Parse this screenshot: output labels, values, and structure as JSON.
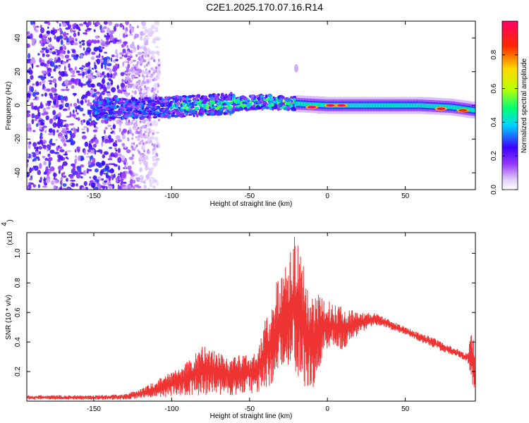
{
  "title": "C2E1.2025.170.07.16.R14",
  "chart_data": [
    {
      "type": "heatmap",
      "xlabel": "Height of straight line (km)",
      "ylabel": "Frequency (Hz)",
      "xlim": [
        -193,
        95
      ],
      "ylim": [
        -50,
        50
      ],
      "x_ticks": [
        -150,
        -100,
        -50,
        0,
        50
      ],
      "y_ticks": [
        -40,
        -20,
        0,
        20,
        40
      ],
      "x_tick_labels": [
        "-150",
        "-100",
        "-50",
        "0",
        "50"
      ],
      "y_tick_labels": [
        "-40",
        "-20",
        "0",
        "20",
        "40"
      ],
      "colorbar": {
        "label": "Normalized spectral amplitude",
        "range": [
          0,
          1
        ],
        "ticks": [
          0.0,
          0.2,
          0.4,
          0.6,
          0.8
        ],
        "tick_labels": [
          "0.0",
          "0.2",
          "0.4",
          "0.6",
          "0.8"
        ],
        "colors": [
          "#ffffff",
          "#9b30ff",
          "#3a00ff",
          "#00e5ff",
          "#00ff66",
          "#c8ff00",
          "#ffd800",
          "#ff3000",
          "#ff0060"
        ]
      },
      "ridge": {
        "x": [
          -140,
          -120,
          -100,
          -80,
          -60,
          -40,
          -20,
          0,
          20,
          40,
          60,
          80,
          95
        ],
        "y": [
          -2,
          -2,
          -1,
          0,
          1,
          2,
          1,
          0,
          0,
          0,
          0,
          -1,
          -3
        ]
      },
      "hot_spots": [
        {
          "x": -10,
          "y": -1,
          "v": 1.0
        },
        {
          "x": 2,
          "y": 0,
          "v": 0.95
        },
        {
          "x": 9,
          "y": 0,
          "v": 0.95
        },
        {
          "x": 73,
          "y": -2,
          "v": 1.0
        },
        {
          "x": 87,
          "y": -3,
          "v": 0.9
        }
      ]
    },
    {
      "type": "line",
      "xlabel": "Height of straight line (km)",
      "ylabel": "SNR (10 * v/v)",
      "y_multiplier_label": "(x10",
      "y_multiplier_exp": "4",
      "xlim": [
        -193,
        95
      ],
      "ylim": [
        0,
        1.14
      ],
      "x_ticks": [
        -150,
        -100,
        -50,
        0,
        50
      ],
      "y_ticks": [
        0.2,
        0.4,
        0.6,
        0.8,
        1.0
      ],
      "x_tick_labels": [
        "-150",
        "-100",
        "-50",
        "0",
        "50"
      ],
      "y_tick_labels": [
        "0.2",
        "0.4",
        "0.6",
        "0.8",
        "1.0"
      ],
      "color": "#ee3333",
      "envelope": {
        "x": [
          -193,
          -150,
          -130,
          -120,
          -100,
          -90,
          -80,
          -60,
          -45,
          -40,
          -30,
          -22,
          -21,
          -15,
          -10,
          0,
          10,
          20,
          30,
          50,
          70,
          90,
          93,
          94,
          95
        ],
        "lo": [
          0.01,
          0.01,
          0.01,
          0.02,
          0.03,
          0.04,
          0.04,
          0.04,
          0.05,
          0.08,
          0.15,
          0.3,
          0.2,
          0.1,
          0.05,
          0.35,
          0.35,
          0.45,
          0.52,
          0.45,
          0.35,
          0.27,
          0.1,
          0.05,
          0.08
        ],
        "hi": [
          0.04,
          0.04,
          0.05,
          0.08,
          0.2,
          0.27,
          0.38,
          0.3,
          0.35,
          0.55,
          0.9,
          1.05,
          1.14,
          0.9,
          0.75,
          0.68,
          0.65,
          0.6,
          0.6,
          0.5,
          0.42,
          0.32,
          0.5,
          0.4,
          0.2
        ]
      }
    }
  ]
}
